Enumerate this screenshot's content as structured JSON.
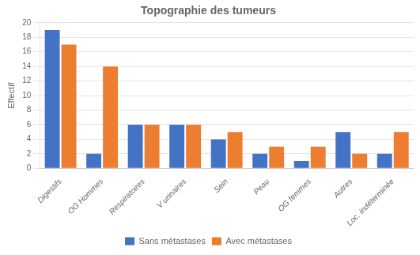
{
  "chart_data": {
    "type": "bar",
    "title": "Topographie des tumeurs",
    "categories": [
      "Digestifs",
      "OG Hommes",
      "Respiratoires",
      "V urinaires",
      "Sein",
      "Peau",
      "OG femmes",
      "Autres",
      "Loc. indéterminée"
    ],
    "series": [
      {
        "name": "Sans métastases",
        "color": "#4472C4",
        "values": [
          19,
          2,
          6,
          6,
          4,
          2,
          1,
          5,
          2
        ]
      },
      {
        "name": "Avec métastases",
        "color": "#ED7D31",
        "values": [
          17,
          14,
          6,
          6,
          5,
          3,
          3,
          2,
          5
        ]
      }
    ],
    "ylabel": "Effectif",
    "ylim": [
      0,
      20
    ],
    "yticks": [
      0,
      2,
      4,
      6,
      8,
      10,
      12,
      14,
      16,
      18,
      20
    ],
    "grid": true,
    "legend": "bottom"
  }
}
